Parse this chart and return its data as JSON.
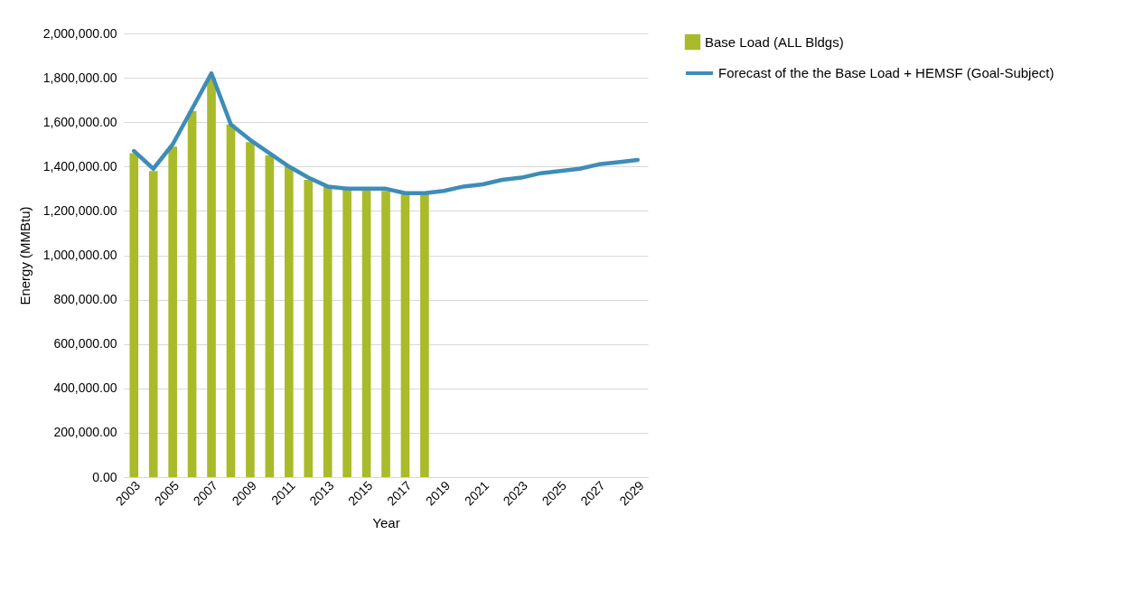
{
  "chart_data": {
    "type": "bar",
    "xlabel": "Year",
    "ylabel": "Energy (MMBtu)",
    "categories": [
      "2003",
      null,
      "2005",
      null,
      "2007",
      null,
      "2009",
      null,
      "2011",
      null,
      "2013",
      null,
      "2015",
      null,
      "2017",
      null,
      "2019",
      null,
      "2021",
      null,
      "2023",
      null,
      "2025",
      null,
      "2027",
      null,
      "2029"
    ],
    "series": [
      {
        "name": "Base Load (ALL Bldgs)",
        "color": "#a9bb2a",
        "values": [
          1460000,
          1380000,
          1490000,
          1650000,
          1800000,
          1590000,
          1510000,
          1450000,
          1400000,
          1340000,
          1310000,
          1300000,
          1300000,
          1290000,
          1280000,
          1280000,
          null,
          null,
          null,
          null,
          null,
          null,
          null,
          null,
          null,
          null,
          null
        ]
      },
      {
        "name": "Forecast of the the Base Load + HEMSF (Goal-Subject)",
        "type": "line",
        "color": "#3d8db8",
        "values": [
          1470000,
          1390000,
          1500000,
          1660000,
          1820000,
          1590000,
          1520000,
          1460000,
          1400000,
          1350000,
          1310000,
          1300000,
          1300000,
          1300000,
          1280000,
          1280000,
          1290000,
          1310000,
          1320000,
          1340000,
          1350000,
          1370000,
          1380000,
          1390000,
          1410000,
          1420000,
          1430000
        ]
      }
    ],
    "ylim": [
      0,
      2000000
    ],
    "yticks": [
      {
        "value": 0,
        "label": "0.00"
      },
      {
        "value": 200000,
        "label": "200,000.00"
      },
      {
        "value": 400000,
        "label": "400,000.00"
      },
      {
        "value": 600000,
        "label": "600,000.00"
      },
      {
        "value": 800000,
        "label": "800,000.00"
      },
      {
        "value": 1000000,
        "label": "1,000,000.00"
      },
      {
        "value": 1200000,
        "label": "1,200,000.00"
      },
      {
        "value": 1400000,
        "label": "1,400,000.00"
      },
      {
        "value": 1600000,
        "label": "1,600,000.00"
      },
      {
        "value": 1800000,
        "label": "1,800,000.00"
      },
      {
        "value": 2000000,
        "label": "2,000,000.00"
      }
    ],
    "grid": "y",
    "legend": "right",
    "line_style": "solid"
  }
}
